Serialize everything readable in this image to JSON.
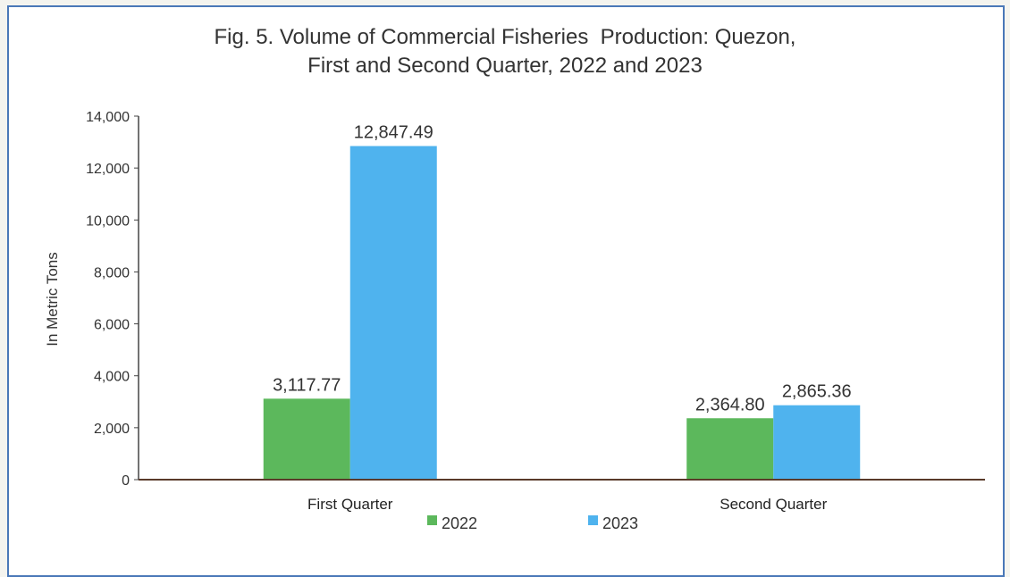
{
  "chart_data": {
    "type": "bar",
    "title_lines": [
      "Fig. 5. Volume of Commercial Fisheries  Production: Quezon,",
      "First and Second Quarter, 2022 and 2023"
    ],
    "ylabel": "In Metric Tons",
    "xlabel": "",
    "categories": [
      "First Quarter",
      "Second Quarter"
    ],
    "series": [
      {
        "name": "2022",
        "values": [
          3117.77,
          2364.8
        ],
        "labels": [
          "3,117.77",
          "2,364.80"
        ],
        "color": "#5cb85c"
      },
      {
        "name": "2023",
        "values": [
          12847.49,
          2865.36
        ],
        "labels": [
          "12,847.49",
          "2,865.36"
        ],
        "color": "#4fb3ee"
      }
    ],
    "ylim": [
      0,
      14000
    ],
    "yticks": [
      0,
      2000,
      4000,
      6000,
      8000,
      10000,
      12000,
      14000
    ],
    "ytick_labels": [
      "0",
      "2,000",
      "4,000",
      "6,000",
      "8,000",
      "10,000",
      "12,000",
      "14,000"
    ],
    "legend_position": "bottom",
    "grid": false
  }
}
